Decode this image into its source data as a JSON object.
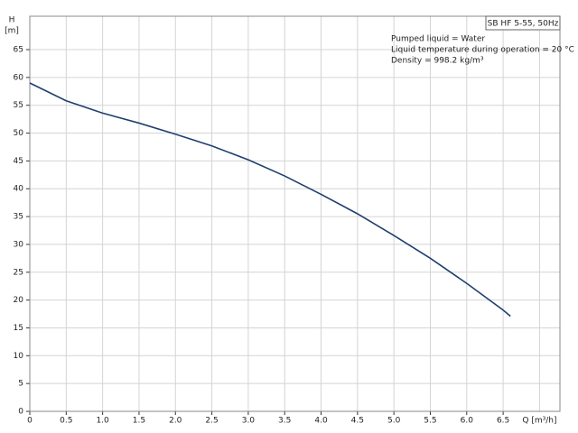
{
  "chart_data": {
    "type": "line",
    "x_label": "Q [m³/h]",
    "y_label": "H",
    "y_unit": "[m]",
    "annotations": [
      "Pumped liquid = Water",
      "Liquid temperature during operation = 20 °C",
      "Density = 998.2 kg/m³"
    ],
    "x": [
      0,
      0.5,
      1.0,
      1.5,
      2.0,
      2.5,
      3.0,
      3.5,
      4.0,
      4.5,
      5.0,
      5.5,
      6.0,
      6.5,
      6.6
    ],
    "series": [
      {
        "name": "SB HF 5-55, 50Hz",
        "color": "#1f3f6e",
        "values": [
          59,
          55.8,
          53.6,
          51.8,
          49.8,
          47.7,
          45.2,
          42.3,
          39,
          35.5,
          31.6,
          27.5,
          23,
          18.2,
          17.1
        ]
      }
    ],
    "xlim": [
      0,
      7.28
    ],
    "ylim": [
      0,
      71
    ],
    "xticks": [
      0,
      0.5,
      {
        "value": 1,
        "label": "1.0"
      },
      1.5,
      {
        "value": 2,
        "label": "2.0"
      },
      2.5,
      {
        "value": 3,
        "label": "3.0"
      },
      3.5,
      {
        "value": 4,
        "label": "4.0"
      },
      4.5,
      {
        "value": 5,
        "label": "5.0"
      },
      5.5,
      {
        "value": 6,
        "label": "6.0"
      },
      6.5
    ],
    "x_label_at": 7,
    "yticks": [
      0,
      5,
      10,
      15,
      20,
      25,
      30,
      35,
      40,
      45,
      50,
      55,
      60,
      65
    ],
    "grid": true
  }
}
